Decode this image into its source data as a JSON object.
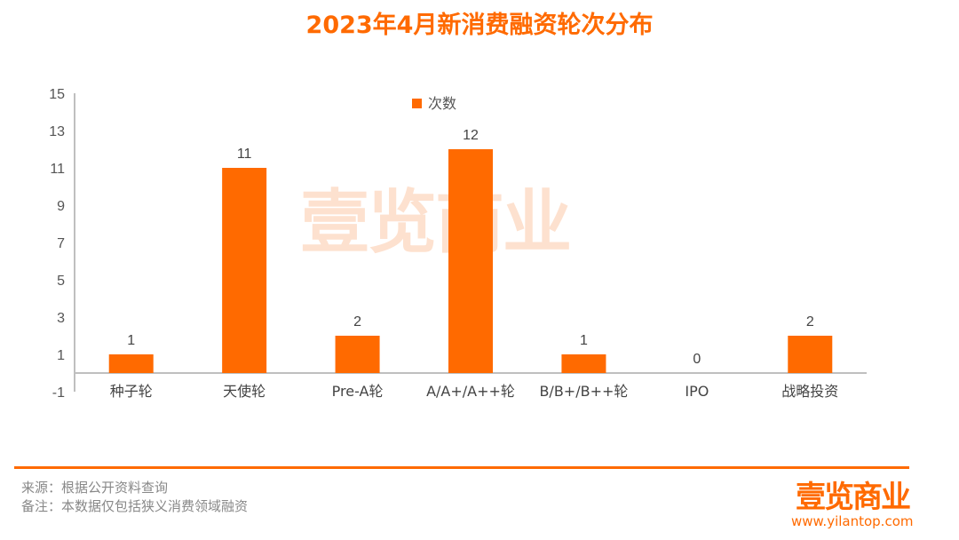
{
  "chart_data": {
    "type": "bar",
    "title": "2023年4月新消费融资轮次分布",
    "categories": [
      "种子轮",
      "天使轮",
      "Pre-A轮",
      "A/A+/A++轮",
      "B/B+/B++轮",
      "IPO",
      "战略投资"
    ],
    "series": [
      {
        "name": "次数",
        "values": [
          1,
          11,
          2,
          12,
          1,
          0,
          2
        ],
        "color": "#ff6a00"
      }
    ],
    "ylim": [
      -1,
      15
    ],
    "yticks": [
      "15",
      "13",
      "11",
      "9",
      "7",
      "5",
      "3",
      "1",
      "-1"
    ],
    "legend": "top-center",
    "grid": false
  },
  "watermark": "壹览商业",
  "footer": {
    "source": "来源：根据公开资料查询",
    "note": "备注：本数据仅包括狭义消费领域融资",
    "logo": "壹览商业",
    "url": "www.yilantop.com"
  }
}
